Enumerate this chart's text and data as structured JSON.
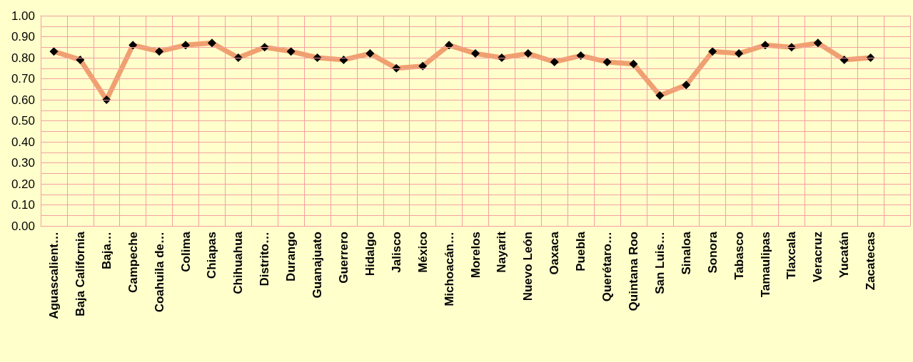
{
  "chart_data": {
    "type": "line",
    "categories": [
      "Aguascalient…",
      "Baja California",
      "Baja…",
      "Campeche",
      "Coahuila de…",
      "Colima",
      "Chiapas",
      "Chihuahua",
      "Distrito…",
      "Durango",
      "Guanajuato",
      "Guerrero",
      "Hidalgo",
      "Jalisco",
      "México",
      "Michoacán…",
      "Morelos",
      "Nayarit",
      "Nuevo León",
      "Oaxaca",
      "Puebla",
      "Querétaro…",
      "Quintana Roo",
      "San Luis…",
      "Sinaloa",
      "Sonora",
      "Tabasco",
      "Tamaulipas",
      "Tlaxcala",
      "Veracruz",
      "Yucatán",
      "Zacatecas",
      null
    ],
    "series": [
      {
        "color": "#f0a070",
        "values": [
          0.83,
          0.79,
          0.6,
          0.86,
          0.83,
          0.86,
          0.87,
          0.8,
          0.85,
          0.83,
          0.8,
          0.79,
          0.82,
          0.75,
          0.76,
          0.86,
          0.82,
          0.8,
          0.82,
          0.78,
          0.81,
          0.78,
          0.77,
          0.62,
          0.67,
          0.83,
          0.82,
          0.86,
          0.85,
          0.87,
          0.79,
          0.8,
          null
        ]
      }
    ],
    "ylim": [
      0,
      1
    ],
    "yticks": [
      {
        "value": 0,
        "label": "0.00"
      },
      {
        "value": 0.1,
        "label": "0.10"
      },
      {
        "value": 0.2,
        "label": "0.20"
      },
      {
        "value": 0.3,
        "label": "0.30"
      },
      {
        "value": 0.4,
        "label": "0.40"
      },
      {
        "value": 0.5,
        "label": "0.50"
      },
      {
        "value": 0.6,
        "label": "0.60"
      },
      {
        "value": 0.7,
        "label": "0.70"
      },
      {
        "value": 0.8,
        "label": "0.80"
      },
      {
        "value": 0.9,
        "label": "0.90"
      },
      {
        "value": 1,
        "label": "1.00"
      }
    ],
    "grid": true,
    "marker": "diamond",
    "line_style": "solid"
  }
}
